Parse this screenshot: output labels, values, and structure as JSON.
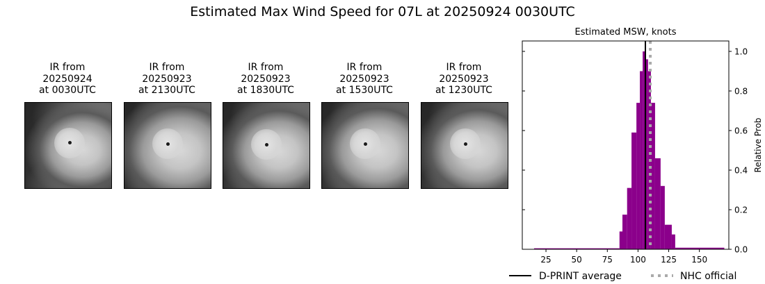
{
  "figure": {
    "suptitle": "Estimated Max Wind Speed for 07L at 20250924 0030UTC"
  },
  "panels": [
    {
      "line1": "IR from",
      "line2": "20250924",
      "line3": "at 0030UTC",
      "eye": [
        0.52,
        0.47
      ],
      "spread": 0.55
    },
    {
      "line1": "IR from",
      "line2": "20250923",
      "line3": "at 2130UTC",
      "eye": [
        0.5,
        0.48
      ],
      "spread": 0.65
    },
    {
      "line1": "IR from",
      "line2": "20250923",
      "line3": "at 1830UTC",
      "eye": [
        0.5,
        0.49
      ],
      "spread": 0.6
    },
    {
      "line1": "IR from",
      "line2": "20250923",
      "line3": "at 1530UTC",
      "eye": [
        0.5,
        0.48
      ],
      "spread": 0.62
    },
    {
      "line1": "IR from",
      "line2": "20250923",
      "line3": "at 1230UTC",
      "eye": [
        0.51,
        0.48
      ],
      "spread": 0.6
    }
  ],
  "chart_data": {
    "type": "bar",
    "title": "Estimated MSW, knots",
    "xlabel": "",
    "ylabel": "Relative Prob",
    "xlim": [
      5.7,
      174
    ],
    "ylim": [
      0.0,
      1.05
    ],
    "xticks": [
      25,
      50,
      75,
      100,
      125,
      150
    ],
    "yticks": [
      0.0,
      0.2,
      0.4,
      0.6,
      0.8,
      1.0
    ],
    "ytick_labels": [
      "0.0",
      "0.2",
      "0.4",
      "0.6",
      "0.8",
      "1.0"
    ],
    "y_axis_side": "right",
    "bar_color": "#8b008b",
    "bins": [
      {
        "x0": 15.3,
        "x1": 84.9,
        "value": 0.005
      },
      {
        "x0": 84.9,
        "x1": 87.3,
        "value": 0.09
      },
      {
        "x0": 87.3,
        "x1": 91.1,
        "value": 0.175
      },
      {
        "x0": 91.1,
        "x1": 94.7,
        "value": 0.31
      },
      {
        "x0": 94.7,
        "x1": 98.7,
        "value": 0.59
      },
      {
        "x0": 98.7,
        "x1": 101.5,
        "value": 0.74
      },
      {
        "x0": 101.5,
        "x1": 103.8,
        "value": 0.9
      },
      {
        "x0": 103.8,
        "x1": 106.1,
        "value": 1.0
      },
      {
        "x0": 106.1,
        "x1": 108.2,
        "value": 0.96
      },
      {
        "x0": 108.2,
        "x1": 110.5,
        "value": 0.9
      },
      {
        "x0": 110.5,
        "x1": 113.9,
        "value": 0.74
      },
      {
        "x0": 113.9,
        "x1": 118.4,
        "value": 0.46
      },
      {
        "x0": 118.4,
        "x1": 121.8,
        "value": 0.32
      },
      {
        "x0": 121.8,
        "x1": 127.5,
        "value": 0.124
      },
      {
        "x0": 127.5,
        "x1": 130.3,
        "value": 0.075
      },
      {
        "x0": 130.3,
        "x1": 170.3,
        "value": 0.008
      }
    ],
    "lines": [
      {
        "name": "D-PRINT average",
        "x": 106,
        "color": "#000000",
        "style": "solid"
      },
      {
        "name": "NHC official",
        "x": 110,
        "color": "#aaaaaa",
        "style": "dotted"
      }
    ],
    "legend": {
      "position": "below",
      "entries": [
        "D-PRINT average",
        "NHC official"
      ]
    },
    "grid": false
  }
}
